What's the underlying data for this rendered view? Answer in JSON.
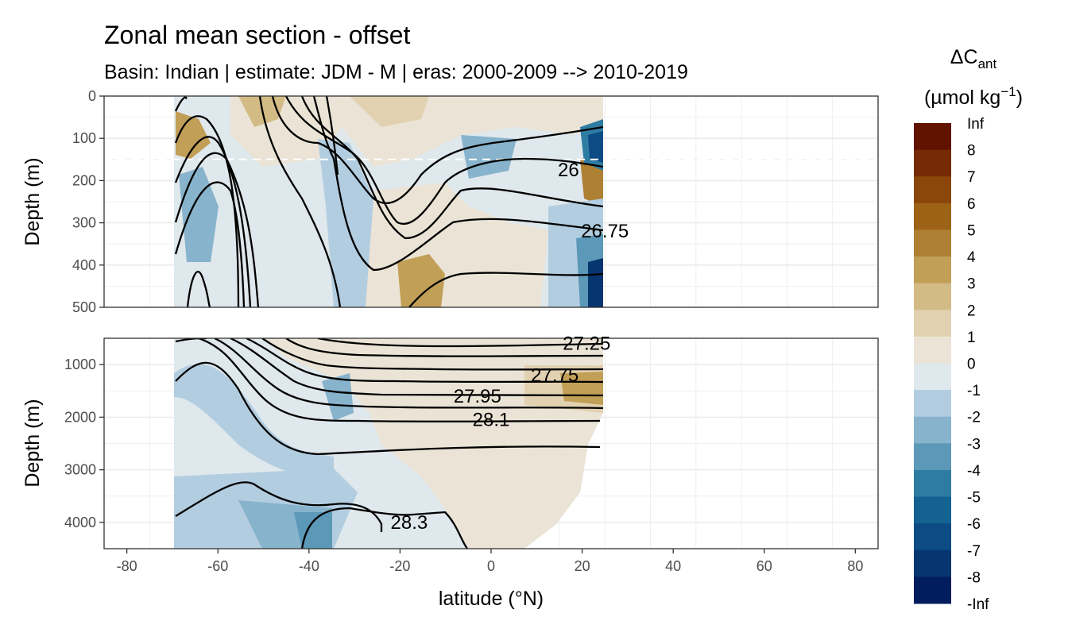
{
  "chart_data": {
    "type": "heatmap",
    "title": "Zonal mean section - offset",
    "subtitle": "Basin: Indian | estimate: JDM - M | eras: 2000-2009 --> 2010-2019",
    "xlabel": "latitude (°N)",
    "ylabel_top": "Depth (m)",
    "ylabel_bottom": "Depth (m)",
    "xlim": [
      -85,
      85
    ],
    "x_ticks": [
      -80,
      -60,
      -40,
      -20,
      0,
      20,
      40,
      60,
      80
    ],
    "x_tick_labels": [
      "-80",
      "-60",
      "-40",
      "-20",
      "0",
      "20",
      "40",
      "60",
      "80"
    ],
    "panels": [
      {
        "name": "upper",
        "ylim": [
          0,
          500
        ],
        "y_ticks": [
          0,
          100,
          200,
          300,
          400,
          500
        ],
        "y_tick_labels": [
          "0",
          "100",
          "200",
          "300",
          "400",
          "500"
        ],
        "reference_line_depth": 150
      },
      {
        "name": "lower",
        "ylim": [
          500,
          4500
        ],
        "y_ticks": [
          1000,
          2000,
          3000,
          4000
        ],
        "y_tick_labels": [
          "1000",
          "2000",
          "3000",
          "4000"
        ]
      }
    ],
    "data_extent_lat": [
      -70,
      24
    ],
    "legend": {
      "title_main": "ΔC",
      "title_sub": "ant",
      "unit_prefix": "(µmol kg",
      "unit_sup": "−1",
      "unit_suffix": ")",
      "breaks": [
        "Inf",
        "8",
        "7",
        "6",
        "5",
        "4",
        "3",
        "2",
        "1",
        "0",
        "-1",
        "-2",
        "-3",
        "-4",
        "-5",
        "-6",
        "-7",
        "-8",
        "-Inf"
      ],
      "colors": [
        "#611300",
        "#752c06",
        "#8b460a",
        "#9c6317",
        "#ae8033",
        "#c19f57",
        "#d3bb86",
        "#e1d1b0",
        "#ebe4d6",
        "#dfe8ec",
        "#b3cde0",
        "#87b3cc",
        "#5c98b7",
        "#2f7ca3",
        "#136292",
        "#0c4b83",
        "#07356f",
        "#021d5e"
      ]
    },
    "contour_labels": [
      {
        "text": "26",
        "lat": 17,
        "depth": 175
      },
      {
        "text": "26.75",
        "lat": 25,
        "depth": 320
      },
      {
        "text": "27.25",
        "lat": 21,
        "depth": 600
      },
      {
        "text": "27.75",
        "lat": 14,
        "depth": 1200
      },
      {
        "text": "27.95",
        "lat": -3,
        "depth": 1600
      },
      {
        "text": "28.1",
        "lat": 0,
        "depth": 2050
      },
      {
        "text": "28.3",
        "lat": -18,
        "depth": 4000
      }
    ]
  }
}
